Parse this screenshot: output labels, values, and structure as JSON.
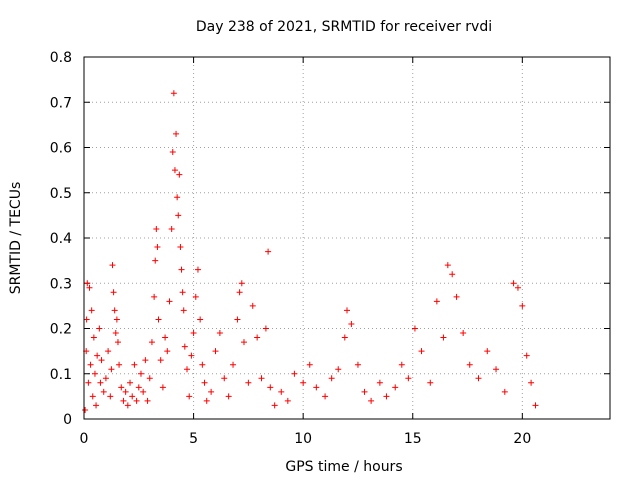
{
  "chart_data": {
    "type": "scatter",
    "title": "Day 238 of 2021, SRMTID for receiver rvdi",
    "xlabel": "GPS time / hours",
    "ylabel": "SRMTID / TECUs",
    "xlim": [
      0,
      24
    ],
    "ylim": [
      0,
      0.8
    ],
    "x_ticks": [
      0,
      5,
      10,
      15,
      20
    ],
    "x_tick_labels": [
      "0",
      "5",
      "10",
      "15",
      "20"
    ],
    "y_ticks": [
      0,
      0.1,
      0.2,
      0.3,
      0.4,
      0.5,
      0.6,
      0.7,
      0.8
    ],
    "y_tick_labels": [
      "0",
      "0.1",
      "0.2",
      "0.3",
      "0.4",
      "0.5",
      "0.6",
      "0.7",
      "0.8"
    ],
    "grid": true,
    "marker": "+",
    "series": [
      {
        "name": "SRMTID",
        "color": "#ff0000",
        "points": [
          [
            0.05,
            0.02
          ],
          [
            0.1,
            0.15
          ],
          [
            0.12,
            0.22
          ],
          [
            0.15,
            0.3
          ],
          [
            0.2,
            0.08
          ],
          [
            0.25,
            0.29
          ],
          [
            0.3,
            0.12
          ],
          [
            0.35,
            0.24
          ],
          [
            0.4,
            0.05
          ],
          [
            0.45,
            0.18
          ],
          [
            0.5,
            0.1
          ],
          [
            0.55,
            0.03
          ],
          [
            0.6,
            0.14
          ],
          [
            0.7,
            0.2
          ],
          [
            0.75,
            0.08
          ],
          [
            0.8,
            0.13
          ],
          [
            0.9,
            0.06
          ],
          [
            1.0,
            0.09
          ],
          [
            1.1,
            0.15
          ],
          [
            1.2,
            0.05
          ],
          [
            1.25,
            0.11
          ],
          [
            1.3,
            0.34
          ],
          [
            1.35,
            0.28
          ],
          [
            1.4,
            0.24
          ],
          [
            1.45,
            0.19
          ],
          [
            1.5,
            0.22
          ],
          [
            1.55,
            0.17
          ],
          [
            1.6,
            0.12
          ],
          [
            1.7,
            0.07
          ],
          [
            1.8,
            0.04
          ],
          [
            1.9,
            0.06
          ],
          [
            2.0,
            0.03
          ],
          [
            2.1,
            0.08
          ],
          [
            2.2,
            0.05
          ],
          [
            2.3,
            0.12
          ],
          [
            2.4,
            0.04
          ],
          [
            2.5,
            0.07
          ],
          [
            2.6,
            0.1
          ],
          [
            2.7,
            0.06
          ],
          [
            2.8,
            0.13
          ],
          [
            2.9,
            0.04
          ],
          [
            3.0,
            0.09
          ],
          [
            3.1,
            0.17
          ],
          [
            3.2,
            0.27
          ],
          [
            3.25,
            0.35
          ],
          [
            3.3,
            0.42
          ],
          [
            3.35,
            0.38
          ],
          [
            3.4,
            0.22
          ],
          [
            3.5,
            0.13
          ],
          [
            3.6,
            0.07
          ],
          [
            3.7,
            0.18
          ],
          [
            3.8,
            0.15
          ],
          [
            3.9,
            0.26
          ],
          [
            4.0,
            0.42
          ],
          [
            4.05,
            0.59
          ],
          [
            4.1,
            0.72
          ],
          [
            4.15,
            0.55
          ],
          [
            4.2,
            0.63
          ],
          [
            4.25,
            0.49
          ],
          [
            4.3,
            0.45
          ],
          [
            4.35,
            0.54
          ],
          [
            4.4,
            0.38
          ],
          [
            4.45,
            0.33
          ],
          [
            4.5,
            0.28
          ],
          [
            4.55,
            0.24
          ],
          [
            4.6,
            0.16
          ],
          [
            4.7,
            0.11
          ],
          [
            4.8,
            0.05
          ],
          [
            4.9,
            0.14
          ],
          [
            5.0,
            0.19
          ],
          [
            5.1,
            0.27
          ],
          [
            5.2,
            0.33
          ],
          [
            5.3,
            0.22
          ],
          [
            5.4,
            0.12
          ],
          [
            5.5,
            0.08
          ],
          [
            5.6,
            0.04
          ],
          [
            5.8,
            0.06
          ],
          [
            6.0,
            0.15
          ],
          [
            6.2,
            0.19
          ],
          [
            6.4,
            0.09
          ],
          [
            6.6,
            0.05
          ],
          [
            6.8,
            0.12
          ],
          [
            7.0,
            0.22
          ],
          [
            7.1,
            0.28
          ],
          [
            7.2,
            0.3
          ],
          [
            7.3,
            0.17
          ],
          [
            7.5,
            0.08
          ],
          [
            7.7,
            0.25
          ],
          [
            7.9,
            0.18
          ],
          [
            8.1,
            0.09
          ],
          [
            8.3,
            0.2
          ],
          [
            8.4,
            0.37
          ],
          [
            8.5,
            0.07
          ],
          [
            8.7,
            0.03
          ],
          [
            9.0,
            0.06
          ],
          [
            9.3,
            0.04
          ],
          [
            9.6,
            0.1
          ],
          [
            10.0,
            0.08
          ],
          [
            10.3,
            0.12
          ],
          [
            10.6,
            0.07
          ],
          [
            11.0,
            0.05
          ],
          [
            11.3,
            0.09
          ],
          [
            11.6,
            0.11
          ],
          [
            11.9,
            0.18
          ],
          [
            12.0,
            0.24
          ],
          [
            12.2,
            0.21
          ],
          [
            12.5,
            0.12
          ],
          [
            12.8,
            0.06
          ],
          [
            13.1,
            0.04
          ],
          [
            13.5,
            0.08
          ],
          [
            13.8,
            0.05
          ],
          [
            14.2,
            0.07
          ],
          [
            14.5,
            0.12
          ],
          [
            14.8,
            0.09
          ],
          [
            15.1,
            0.2
          ],
          [
            15.4,
            0.15
          ],
          [
            15.8,
            0.08
          ],
          [
            16.1,
            0.26
          ],
          [
            16.4,
            0.18
          ],
          [
            16.6,
            0.34
          ],
          [
            16.8,
            0.32
          ],
          [
            17.0,
            0.27
          ],
          [
            17.3,
            0.19
          ],
          [
            17.6,
            0.12
          ],
          [
            18.0,
            0.09
          ],
          [
            18.4,
            0.15
          ],
          [
            18.8,
            0.11
          ],
          [
            19.2,
            0.06
          ],
          [
            19.6,
            0.3
          ],
          [
            19.8,
            0.29
          ],
          [
            20.0,
            0.25
          ],
          [
            20.2,
            0.14
          ],
          [
            20.4,
            0.08
          ],
          [
            20.6,
            0.03
          ]
        ]
      }
    ]
  }
}
